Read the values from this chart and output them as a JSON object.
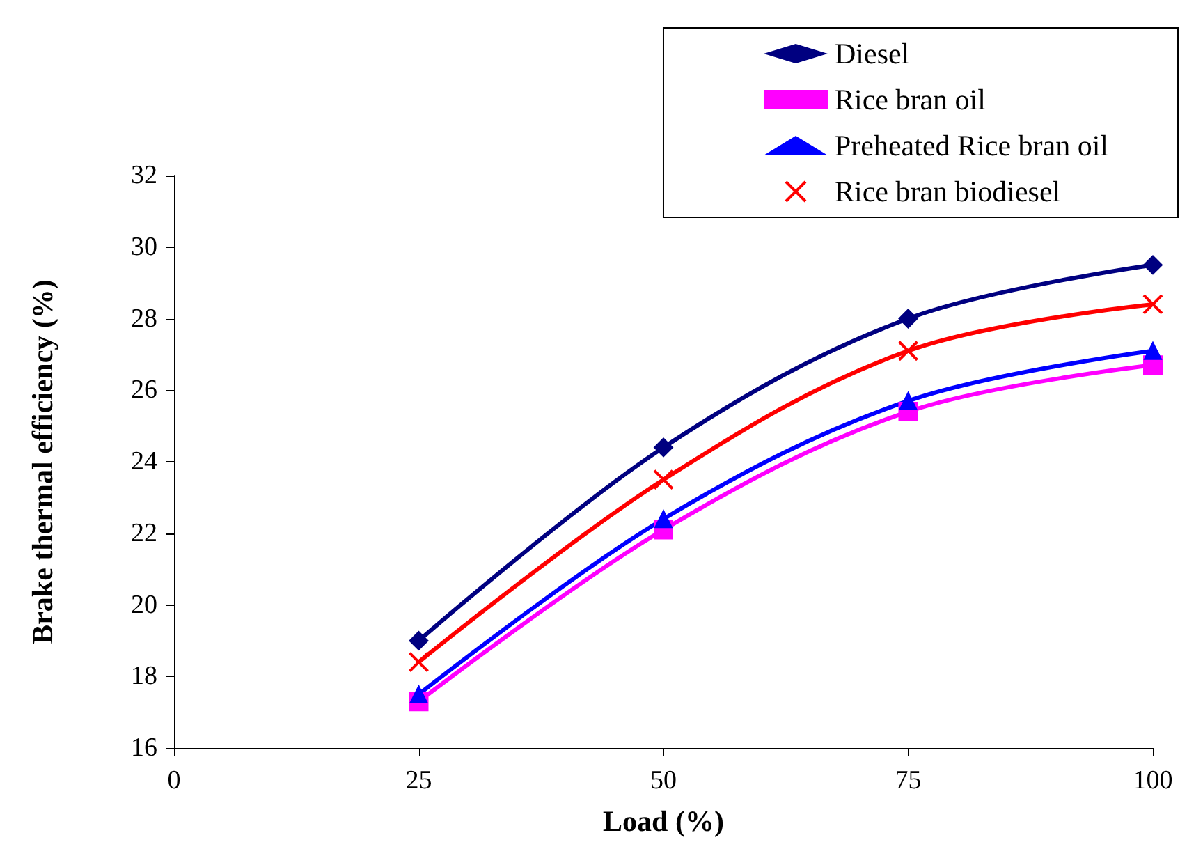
{
  "chart_data": {
    "type": "line",
    "xlabel": "Load (%)",
    "ylabel": "Brake thermal efficiency (%)",
    "x": [
      25,
      50,
      75,
      100
    ],
    "xlim": [
      0,
      100
    ],
    "xticks": [
      0,
      25,
      50,
      75,
      100
    ],
    "ylim": [
      16,
      32
    ],
    "yticks": [
      16,
      18,
      20,
      22,
      24,
      26,
      28,
      30,
      32
    ],
    "grid": false,
    "legend": "top right",
    "line_style": "solid",
    "series": [
      {
        "name": "Diesel",
        "color": "#000080",
        "marker": "diamond",
        "values": [
          19.0,
          24.4,
          28.0,
          29.5
        ]
      },
      {
        "name": "Rice bran oil",
        "color": "#ff00ff",
        "marker": "square",
        "values": [
          17.3,
          22.1,
          25.4,
          26.7
        ]
      },
      {
        "name": "Preheated Rice bran oil",
        "color": "#0000ff",
        "marker": "triangle",
        "values": [
          17.5,
          22.4,
          25.7,
          27.1
        ]
      },
      {
        "name": "Rice bran biodiesel",
        "color": "#ff0000",
        "marker": "cross",
        "values": [
          18.4,
          23.5,
          27.1,
          28.4
        ]
      }
    ]
  }
}
